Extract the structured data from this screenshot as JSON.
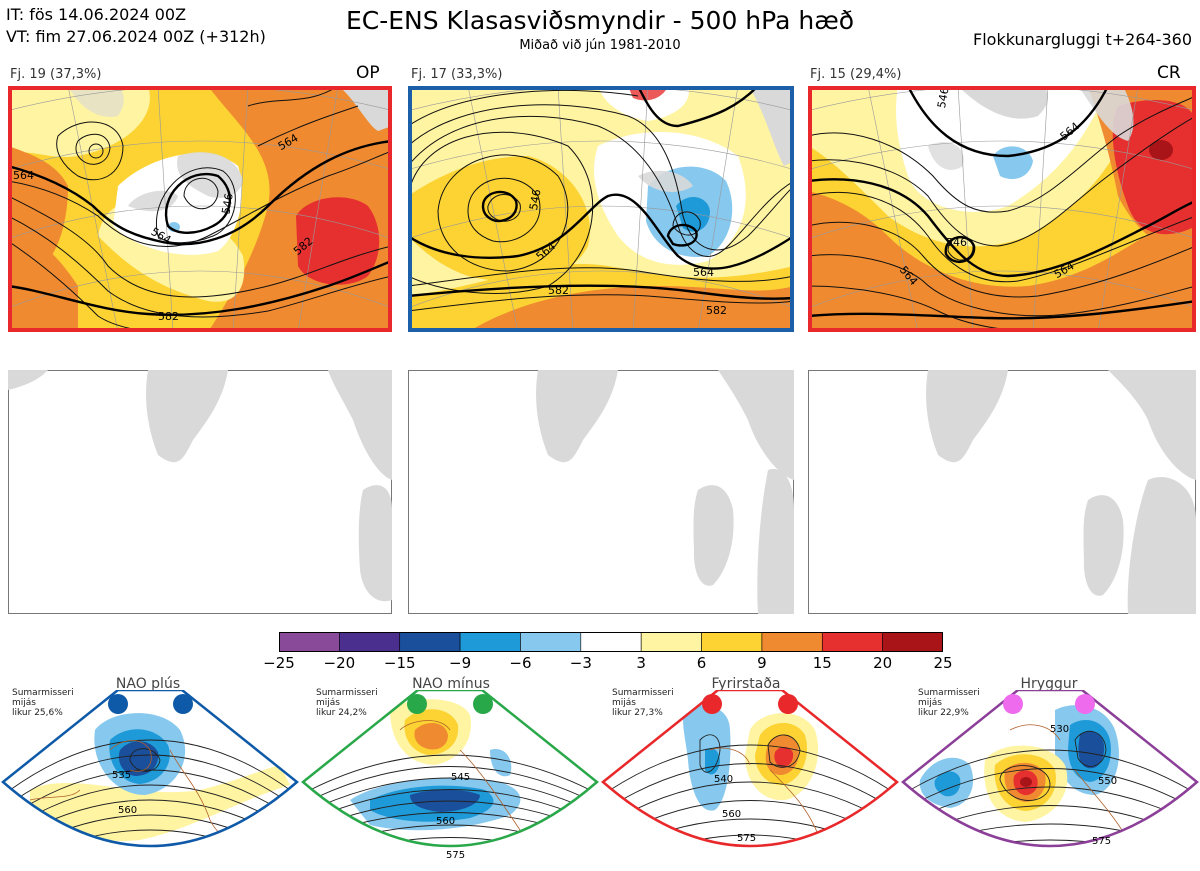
{
  "header": {
    "init_time": "IT: fös 14.06.2024 00Z",
    "valid_time": "VT: fim 27.06.2024 00Z  (+312h)",
    "title": "EC-ENS Klasasviðsmyndir - 500 hPa hæð",
    "subtitle": "Miðað við jún 1981-2010",
    "window": "Flokkunargluggi t+264-360"
  },
  "clusters": [
    {
      "label": "Fj. 19 (37,3%)",
      "tag": "OP",
      "border_color": "#e8282a",
      "contour_labels": [
        "564",
        "546",
        "564",
        "582",
        "564",
        "582"
      ]
    },
    {
      "label": "Fj. 17 (33,3%)",
      "tag": "",
      "border_color": "#1a5fa8",
      "contour_labels": [
        "546",
        "564",
        "582",
        "564",
        "582"
      ]
    },
    {
      "label": "Fj. 15 (29,4%)",
      "tag": "CR",
      "border_color": "#e8282a",
      "contour_labels": [
        "546",
        "564",
        "546",
        "564",
        "564"
      ]
    }
  ],
  "colorbar": {
    "ticks": [
      "−25",
      "−20",
      "−15",
      "−9",
      "−6",
      "−3",
      "3",
      "6",
      "9",
      "15",
      "20",
      "25"
    ],
    "colors": [
      "#8a4a9a",
      "#4a2f8f",
      "#1a4f9c",
      "#1f9ad9",
      "#86c8ee",
      "#ffffff",
      "#fff4a2",
      "#fcd333",
      "#f08a30",
      "#e63030",
      "#a81418"
    ]
  },
  "regimes": [
    {
      "name": "NAO plús",
      "season": "Sumarmisseri",
      "mean": "mijás",
      "prob": "likur 25,6%",
      "color": "#0f5aa8",
      "labels": [
        "535",
        "560"
      ]
    },
    {
      "name": "NAO mínus",
      "season": "Sumarmisseri",
      "mean": "mijás",
      "prob": "likur 24,2%",
      "color": "#29a84a",
      "labels": [
        "545",
        "560",
        "575"
      ]
    },
    {
      "name": "Fyrirstaða",
      "season": "Sumarmisseri",
      "mean": "mijás",
      "prob": "likur 27,3%",
      "color": "#e8282a",
      "labels": [
        "540",
        "560",
        "575"
      ]
    },
    {
      "name": "Hryggur",
      "season": "Sumarmisseri",
      "mean": "mijás",
      "prob": "likur 22,9%",
      "color": "#8c3f98",
      "labels": [
        "530",
        "550",
        "575"
      ]
    }
  ]
}
